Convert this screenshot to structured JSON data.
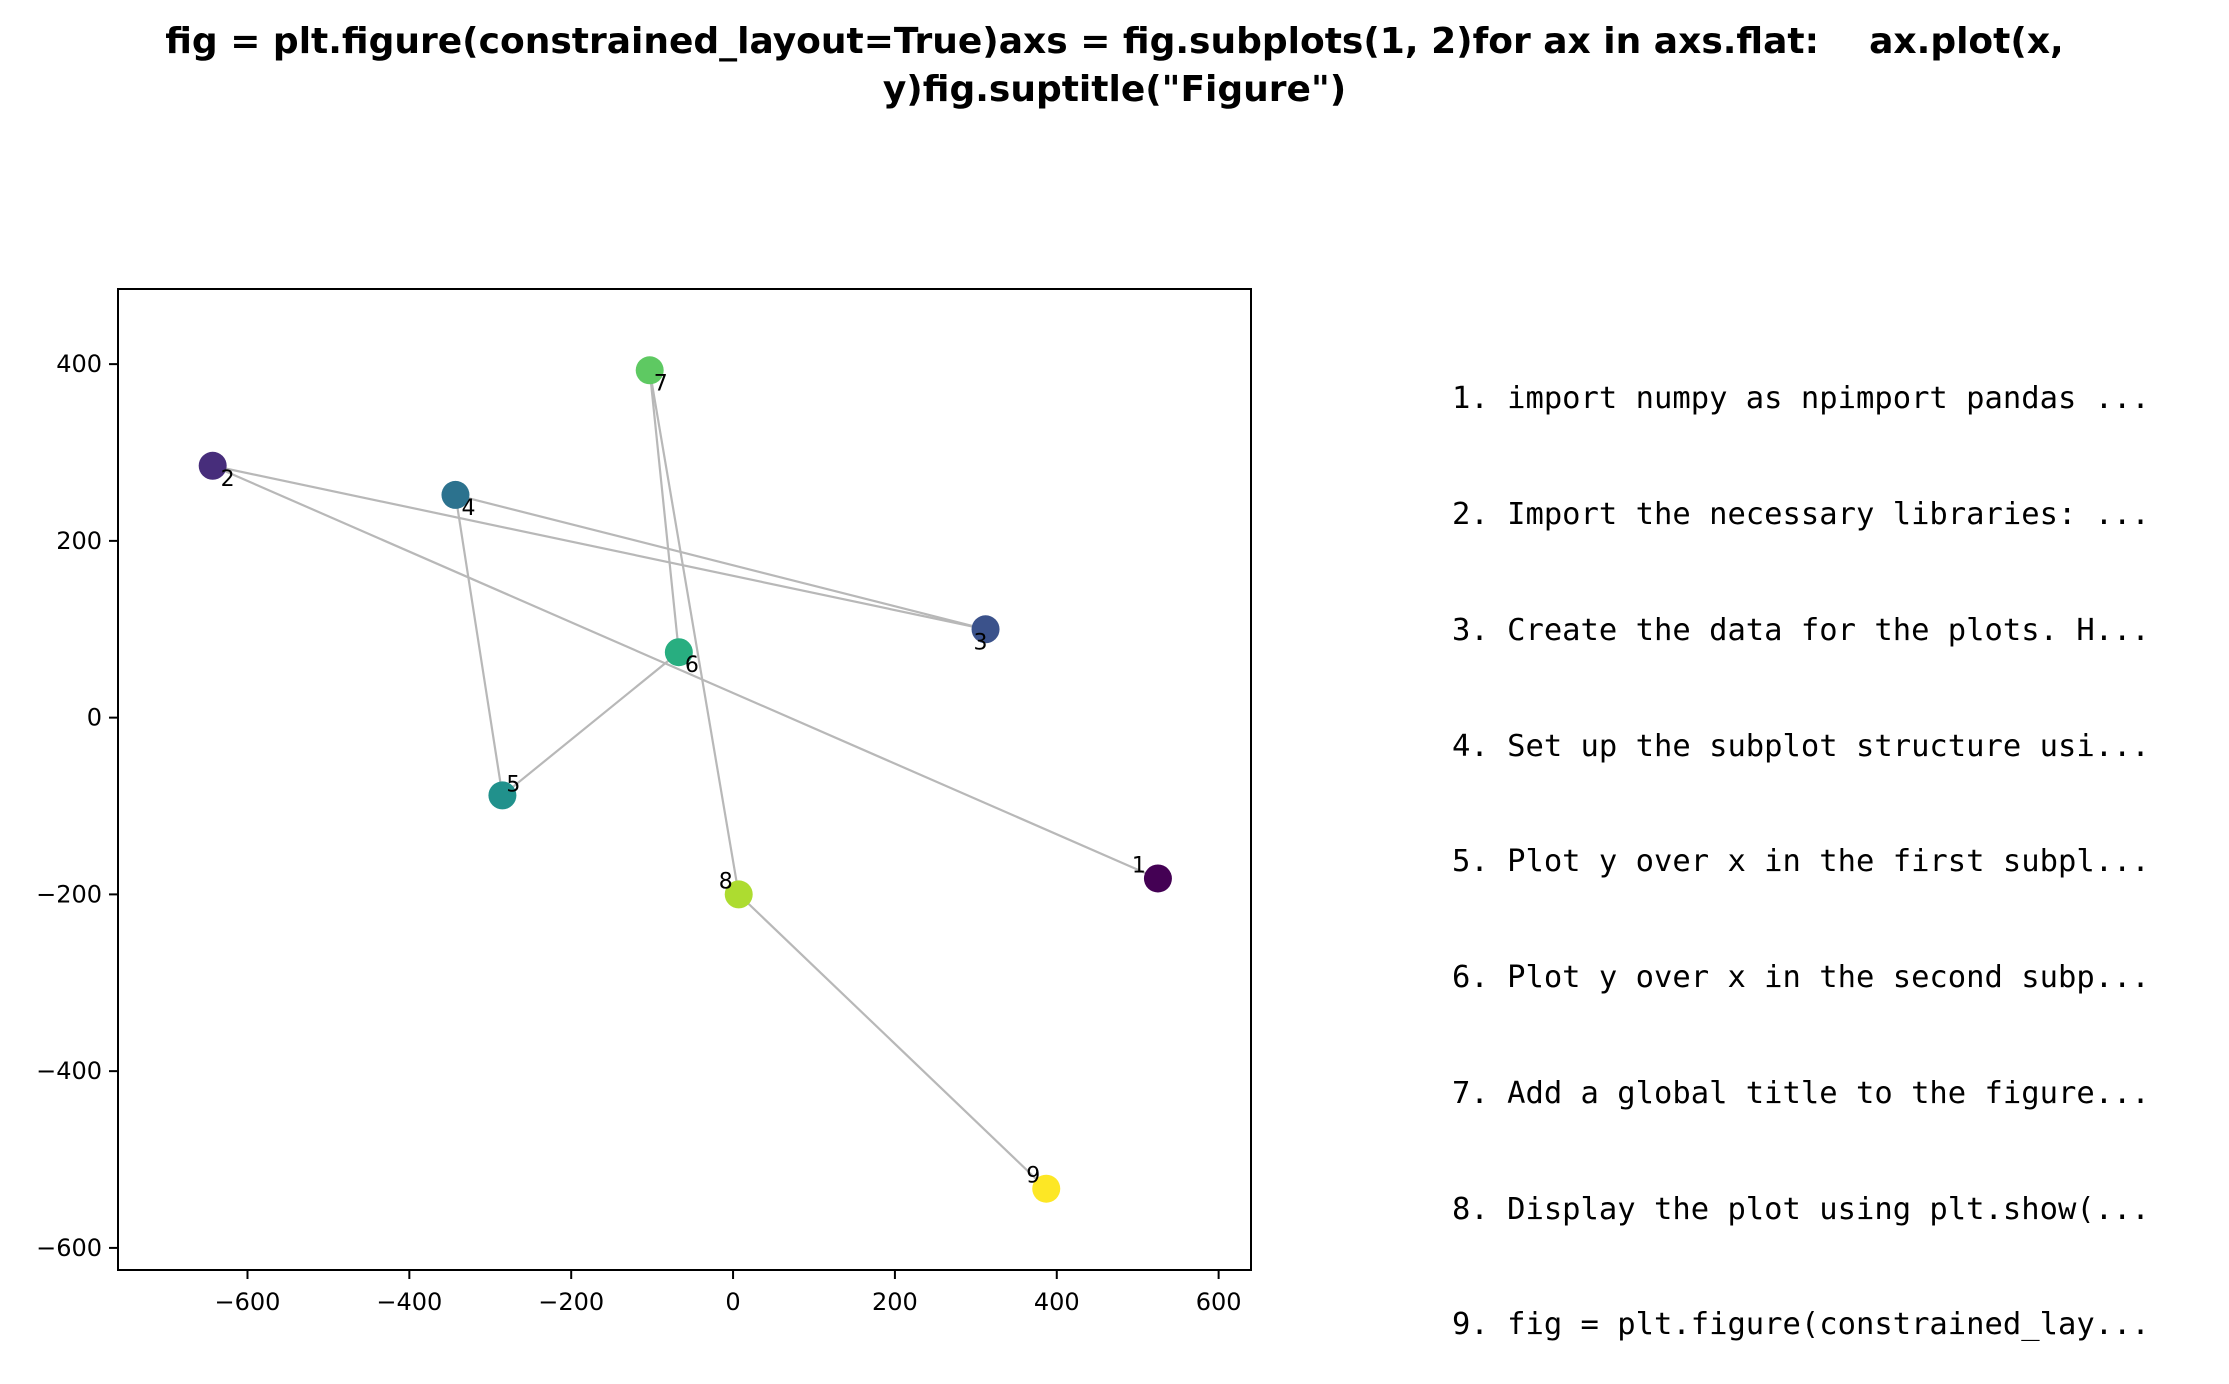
{
  "title_lines": [
    "fig = plt.figure(constrained_layout=True)axs = fig.subplots(1, 2)for ax in axs.flat:    ax.plot(x,",
    "y)fig.suptitle(\"Figure\")"
  ],
  "steps": [
    "1. import numpy as npimport pandas ...",
    "2. Import the necessary libraries: ...",
    "3. Create the data for the plots. H...",
    "4. Set up the subplot structure usi...",
    "5. Plot y over x in the first subpl...",
    "6. Plot y over x in the second subp...",
    "7. Add a global title to the figure...",
    "8. Display the plot using plt.show(...",
    "9. fig = plt.figure(constrained_lay..."
  ],
  "chart_data": {
    "type": "scatter",
    "title": "",
    "xlabel": "",
    "ylabel": "",
    "xlim": [
      -760,
      640
    ],
    "ylim": [
      -625,
      485
    ],
    "xticks": [
      -600,
      -400,
      -200,
      0,
      200,
      400,
      600
    ],
    "yticks": [
      -600,
      -400,
      -200,
      0,
      200,
      400
    ],
    "xtick_labels": [
      "−600",
      "−400",
      "−200",
      "0",
      "200",
      "400",
      "600"
    ],
    "ytick_labels": [
      "−600",
      "−400",
      "−200",
      "0",
      "200",
      "400"
    ],
    "grid": false,
    "connect_points_in_order": true,
    "line_color": "#b8b8b8",
    "points": [
      {
        "label": "1",
        "x": 525,
        "y": -182,
        "color": "#440154"
      },
      {
        "label": "2",
        "x": -643,
        "y": 285,
        "color": "#472d7b"
      },
      {
        "label": "3",
        "x": 312,
        "y": 100,
        "color": "#3b528b"
      },
      {
        "label": "4",
        "x": -343,
        "y": 252,
        "color": "#2c728e"
      },
      {
        "label": "5",
        "x": -285,
        "y": -88,
        "color": "#21918c"
      },
      {
        "label": "6",
        "x": -67,
        "y": 74,
        "color": "#28ae80"
      },
      {
        "label": "7",
        "x": -103,
        "y": 393,
        "color": "#5ec962"
      },
      {
        "label": "8",
        "x": 7,
        "y": -200,
        "color": "#addc30"
      },
      {
        "label": "9",
        "x": 387,
        "y": -533,
        "color": "#fde725"
      }
    ]
  }
}
